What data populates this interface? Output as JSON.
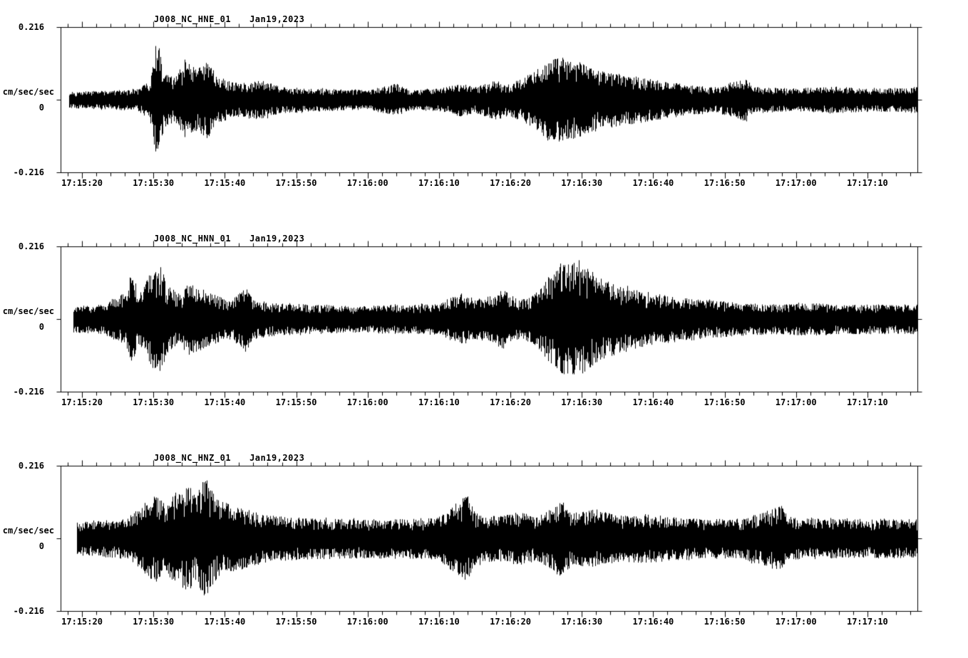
{
  "page": {
    "background": "#ffffff",
    "trace_color": "#000000"
  },
  "chart_data": [
    {
      "type": "line",
      "chart_kind": "seismogram",
      "title": "J008_NC_HNE_01",
      "date": "Jan19,2023",
      "ylabel": "cm/sec/sec",
      "ylim": [
        -0.216,
        0.216
      ],
      "ytick_labels": [
        "0.216",
        "0",
        "-0.216"
      ],
      "xtick_labels": [
        "17:15:20",
        "17:15:30",
        "17:15:40",
        "17:15:50",
        "17:16:00",
        "17:16:10",
        "17:16:20",
        "17:16:30",
        "17:16:40",
        "17:16:50",
        "17:17:00",
        "17:17:10"
      ],
      "duration_seconds": 120,
      "first_major_tick_offset_seconds": 3,
      "major_tick_interval_seconds": 10,
      "minor_tick_interval_seconds": 2,
      "trace_start_offset_seconds": 1.2,
      "envelope_keyframes": [
        [
          1.2,
          0.025
        ],
        [
          8,
          0.03
        ],
        [
          11,
          0.035
        ],
        [
          12.5,
          0.06
        ],
        [
          13.5,
          0.19
        ],
        [
          14.5,
          0.08
        ],
        [
          16,
          0.07
        ],
        [
          17.5,
          0.13
        ],
        [
          19,
          0.09
        ],
        [
          20.5,
          0.12
        ],
        [
          22,
          0.07
        ],
        [
          25,
          0.05
        ],
        [
          28,
          0.06
        ],
        [
          31,
          0.04
        ],
        [
          36,
          0.035
        ],
        [
          43,
          0.03
        ],
        [
          47,
          0.05
        ],
        [
          49,
          0.03
        ],
        [
          53,
          0.035
        ],
        [
          56,
          0.05
        ],
        [
          58,
          0.04
        ],
        [
          61,
          0.06
        ],
        [
          63,
          0.05
        ],
        [
          65,
          0.07
        ],
        [
          67,
          0.1
        ],
        [
          69,
          0.13
        ],
        [
          71,
          0.12
        ],
        [
          73,
          0.11
        ],
        [
          75,
          0.09
        ],
        [
          78,
          0.08
        ],
        [
          81,
          0.07
        ],
        [
          84,
          0.06
        ],
        [
          88,
          0.045
        ],
        [
          92,
          0.04
        ],
        [
          96,
          0.065
        ],
        [
          97,
          0.04
        ],
        [
          102,
          0.035
        ],
        [
          108,
          0.04
        ],
        [
          114,
          0.035
        ],
        [
          120,
          0.04
        ]
      ]
    },
    {
      "type": "line",
      "chart_kind": "seismogram",
      "title": "J008_NC_HNN_01",
      "date": "Jan19,2023",
      "ylabel": "cm/sec/sec",
      "ylim": [
        -0.216,
        0.216
      ],
      "ytick_labels": [
        "0.216",
        "0",
        "-0.216"
      ],
      "xtick_labels": [
        "17:15:20",
        "17:15:30",
        "17:15:40",
        "17:15:50",
        "17:16:00",
        "17:16:10",
        "17:16:20",
        "17:16:30",
        "17:16:40",
        "17:16:50",
        "17:17:00",
        "17:17:10"
      ],
      "duration_seconds": 120,
      "first_major_tick_offset_seconds": 3,
      "major_tick_interval_seconds": 10,
      "minor_tick_interval_seconds": 2,
      "trace_start_offset_seconds": 1.8,
      "envelope_keyframes": [
        [
          1.8,
          0.04
        ],
        [
          6,
          0.045
        ],
        [
          9,
          0.08
        ],
        [
          10,
          0.14
        ],
        [
          11,
          0.07
        ],
        [
          12,
          0.12
        ],
        [
          13,
          0.15
        ],
        [
          14,
          0.16
        ],
        [
          15,
          0.1
        ],
        [
          17,
          0.08
        ],
        [
          18,
          0.11
        ],
        [
          20,
          0.09
        ],
        [
          22,
          0.07
        ],
        [
          24,
          0.06
        ],
        [
          26,
          0.1
        ],
        [
          27,
          0.06
        ],
        [
          30,
          0.05
        ],
        [
          35,
          0.045
        ],
        [
          42,
          0.04
        ],
        [
          48,
          0.045
        ],
        [
          53,
          0.05
        ],
        [
          56,
          0.08
        ],
        [
          58,
          0.06
        ],
        [
          60,
          0.07
        ],
        [
          62,
          0.09
        ],
        [
          64,
          0.06
        ],
        [
          66,
          0.07
        ],
        [
          68,
          0.12
        ],
        [
          70,
          0.17
        ],
        [
          72,
          0.18
        ],
        [
          74,
          0.15
        ],
        [
          76,
          0.12
        ],
        [
          79,
          0.1
        ],
        [
          82,
          0.08
        ],
        [
          86,
          0.07
        ],
        [
          90,
          0.06
        ],
        [
          95,
          0.05
        ],
        [
          100,
          0.045
        ],
        [
          105,
          0.05
        ],
        [
          110,
          0.045
        ],
        [
          120,
          0.045
        ]
      ]
    },
    {
      "type": "line",
      "chart_kind": "seismogram",
      "title": "J008_NC_HNZ_01",
      "date": "Jan19,2023",
      "ylabel": "cm/sec/sec",
      "ylim": [
        -0.216,
        0.216
      ],
      "ytick_labels": [
        "0.216",
        "0",
        "-0.216"
      ],
      "xtick_labels": [
        "17:15:20",
        "17:15:30",
        "17:15:40",
        "17:15:50",
        "17:16:00",
        "17:16:10",
        "17:16:20",
        "17:16:30",
        "17:16:40",
        "17:16:50",
        "17:17:00",
        "17:17:10"
      ],
      "duration_seconds": 120,
      "first_major_tick_offset_seconds": 3,
      "major_tick_interval_seconds": 10,
      "minor_tick_interval_seconds": 2,
      "trace_start_offset_seconds": 2.3,
      "envelope_keyframes": [
        [
          2.3,
          0.05
        ],
        [
          5,
          0.055
        ],
        [
          9,
          0.06
        ],
        [
          11,
          0.09
        ],
        [
          13,
          0.13
        ],
        [
          15,
          0.11
        ],
        [
          16,
          0.14
        ],
        [
          18,
          0.16
        ],
        [
          19,
          0.13
        ],
        [
          20,
          0.19
        ],
        [
          21,
          0.15
        ],
        [
          22,
          0.12
        ],
        [
          24,
          0.1
        ],
        [
          26,
          0.09
        ],
        [
          29,
          0.07
        ],
        [
          33,
          0.065
        ],
        [
          40,
          0.06
        ],
        [
          48,
          0.06
        ],
        [
          53,
          0.065
        ],
        [
          56,
          0.12
        ],
        [
          57,
          0.13
        ],
        [
          58,
          0.08
        ],
        [
          61,
          0.07
        ],
        [
          64,
          0.08
        ],
        [
          67,
          0.07
        ],
        [
          70,
          0.11
        ],
        [
          72,
          0.08
        ],
        [
          75,
          0.09
        ],
        [
          78,
          0.07
        ],
        [
          82,
          0.075
        ],
        [
          86,
          0.065
        ],
        [
          90,
          0.06
        ],
        [
          95,
          0.06
        ],
        [
          101,
          0.1
        ],
        [
          102,
          0.065
        ],
        [
          108,
          0.06
        ],
        [
          114,
          0.06
        ],
        [
          120,
          0.06
        ]
      ]
    }
  ]
}
